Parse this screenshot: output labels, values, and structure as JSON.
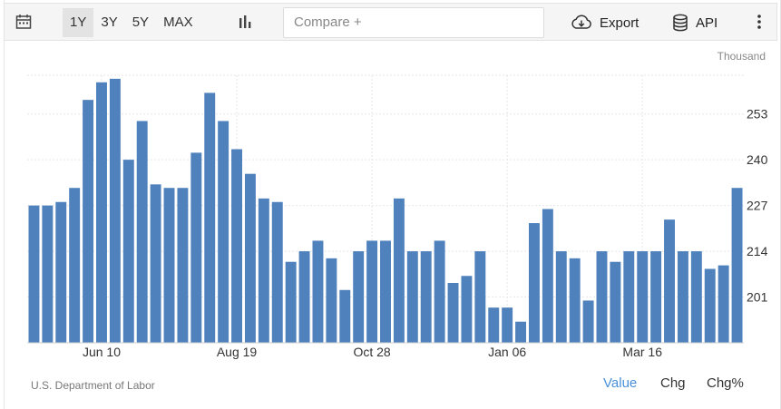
{
  "toolbar": {
    "ranges": [
      "1Y",
      "3Y",
      "5Y",
      "MAX"
    ],
    "active_range": "1Y",
    "compare_placeholder": "Compare +",
    "export_label": "Export",
    "api_label": "API",
    "icons": [
      "calendar-icon",
      "bar-chart-icon",
      "cloud-download-icon",
      "database-icon",
      "more-vertical-icon"
    ]
  },
  "chart": {
    "unit": "Thousand",
    "source": "U.S. Department of Labor"
  },
  "view_options": {
    "value_label": "Value",
    "chg_label": "Chg",
    "chgpct_label": "Chg%",
    "active": "Value",
    "active_color": "#4a90d9"
  },
  "chart_data": {
    "type": "bar",
    "unit": "Thousand",
    "bar_color": "#4f81bd",
    "grid": true,
    "ylim": [
      188,
      264
    ],
    "y_ticks": [
      201,
      214,
      227,
      240,
      253
    ],
    "x_ticks": [
      "Jun 10",
      "Aug 19",
      "Oct 28",
      "Jan 06",
      "Mar 16"
    ],
    "x_tick_bar_index": [
      5,
      15,
      25,
      35,
      45
    ],
    "values": [
      227,
      227,
      228,
      232,
      257,
      262,
      263,
      240,
      251,
      233,
      232,
      232,
      242,
      259,
      251,
      243,
      236,
      229,
      228,
      211,
      214,
      217,
      212,
      203,
      214,
      217,
      217,
      229,
      214,
      214,
      217,
      205,
      207,
      214,
      198,
      198,
      194,
      222,
      226,
      214,
      212,
      200,
      214,
      211,
      214,
      214,
      214,
      223,
      214,
      214,
      209,
      210,
      232
    ]
  }
}
